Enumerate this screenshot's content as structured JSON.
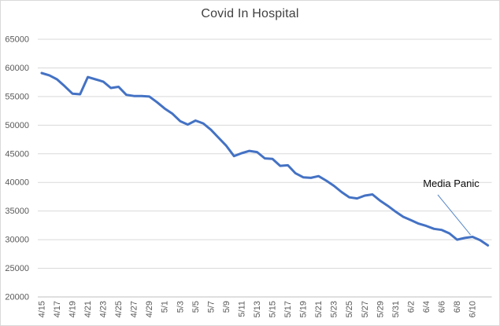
{
  "chart_data": {
    "type": "line",
    "title": "Covid In Hospital",
    "legend": "none",
    "grid": true,
    "ylim": [
      20000,
      65000
    ],
    "y_tick_step": 5000,
    "y_tick_labels": [
      "20000",
      "25000",
      "30000",
      "35000",
      "40000",
      "45000",
      "50000",
      "55000",
      "60000",
      "65000"
    ],
    "x_tick_labels": [
      "4/15",
      "4/17",
      "4/19",
      "4/21",
      "4/23",
      "4/25",
      "4/27",
      "4/29",
      "5/1",
      "5/3",
      "5/5",
      "5/7",
      "5/9",
      "5/11",
      "5/13",
      "5/15",
      "5/17",
      "5/19",
      "5/21",
      "5/23",
      "5/25",
      "5/27",
      "5/29",
      "5/31",
      "6/2",
      "6/4",
      "6/6",
      "6/8",
      "6/10"
    ],
    "categories": [
      "4/15",
      "4/16",
      "4/17",
      "4/18",
      "4/19",
      "4/20",
      "4/21",
      "4/22",
      "4/23",
      "4/24",
      "4/25",
      "4/26",
      "4/27",
      "4/28",
      "4/29",
      "4/30",
      "5/1",
      "5/2",
      "5/3",
      "5/4",
      "5/5",
      "5/6",
      "5/7",
      "5/8",
      "5/9",
      "5/10",
      "5/11",
      "5/12",
      "5/13",
      "5/14",
      "5/15",
      "5/16",
      "5/17",
      "5/18",
      "5/19",
      "5/20",
      "5/21",
      "5/22",
      "5/23",
      "5/24",
      "5/25",
      "5/26",
      "5/27",
      "5/28",
      "5/29",
      "5/30",
      "5/31",
      "6/1",
      "6/2",
      "6/3",
      "6/4",
      "6/5",
      "6/6",
      "6/7",
      "6/8",
      "6/9",
      "6/10",
      "6/11",
      "6/12"
    ],
    "values": [
      59100,
      58700,
      58000,
      56800,
      55500,
      55400,
      58400,
      58000,
      57600,
      56500,
      56700,
      55300,
      55100,
      55100,
      55000,
      54000,
      52900,
      52000,
      50700,
      50100,
      50800,
      50300,
      49200,
      47800,
      46400,
      44600,
      45100,
      45500,
      45300,
      44200,
      44100,
      42900,
      43000,
      41600,
      40900,
      40800,
      41100,
      40300,
      39400,
      38300,
      37400,
      37200,
      37700,
      37900,
      36800,
      35900,
      34900,
      34000,
      33400,
      32800,
      32400,
      31900,
      31700,
      31100,
      30000,
      30300,
      30500,
      29900,
      29000
    ],
    "annotation": {
      "text": "Media Panic",
      "target_category": "6/10"
    },
    "colors": {
      "series": "#4472C4",
      "gridline": "#D9D9D9",
      "axis_line": "#BFBFBF",
      "tick_label": "#595959",
      "title": "#404040",
      "annotation_text": "#0d0d0d",
      "leader_line": "#5585C7",
      "background": "#FFFFFF",
      "border": "#D9D9D9"
    }
  }
}
